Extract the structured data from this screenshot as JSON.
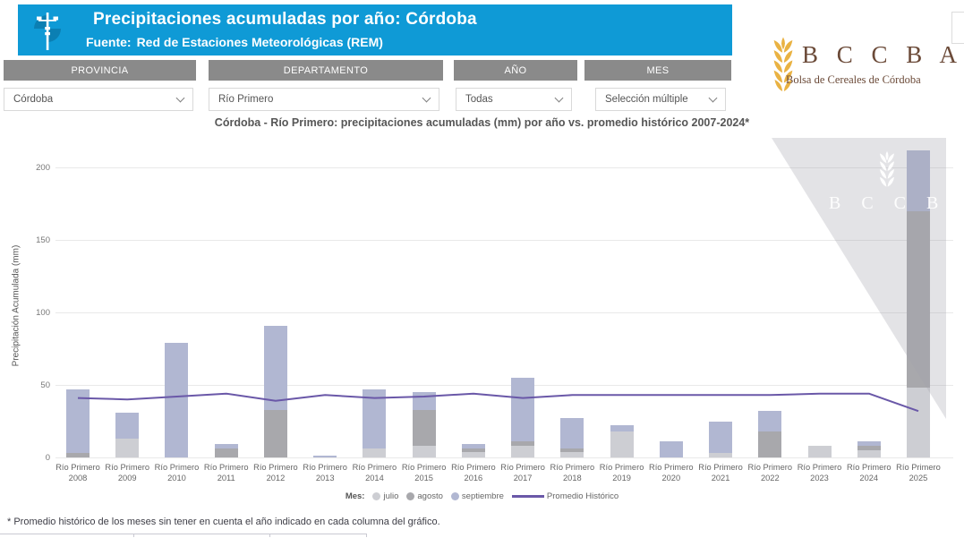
{
  "header": {
    "title": "Precipitaciones acumuladas por año: Córdoba",
    "source_label": "Fuente:",
    "source_value": "Red de Estaciones Meteorológicas (REM)"
  },
  "filters": [
    {
      "label": "PROVINCIA",
      "value": "Córdoba"
    },
    {
      "label": "DEPARTAMENTO",
      "value": "Río Primero"
    },
    {
      "label": "AÑO",
      "value": "Todas"
    },
    {
      "label": "MES",
      "value": "Selección múltiple"
    }
  ],
  "logo": {
    "acronym": "B C C B A",
    "tagline": "Bolsa de Cereales de Córdoba"
  },
  "watermark": {
    "acronym": "B C C B A"
  },
  "colors": {
    "header_bg": "#0f9ad6",
    "filter_header_bg": "#8a8a8a",
    "julio": "#cdced3",
    "agosto": "#a8a8ac",
    "septiembre": "#b1b7d2",
    "promedio_line": "#6a58a8",
    "logo_brown": "#6b4a38",
    "wheat_gold": "#e9b243"
  },
  "chart_data": {
    "type": "bar",
    "stacked": true,
    "title": "Córdoba - Río Primero: precipitaciones acumuladas (mm) por año vs. promedio histórico 2007-2024*",
    "ylabel": "Precipitación Acumulada (mm)",
    "ylim": [
      0,
      220
    ],
    "yticks": [
      0,
      50,
      100,
      150,
      200
    ],
    "grid": true,
    "legend_label": "Mes:",
    "legend_position": "bottom",
    "category_prefix": "Río Primero",
    "categories": [
      "2008",
      "2009",
      "2010",
      "2011",
      "2012",
      "2013",
      "2014",
      "2015",
      "2016",
      "2017",
      "2018",
      "2019",
      "2020",
      "2021",
      "2022",
      "2023",
      "2024",
      "2025"
    ],
    "series": [
      {
        "name": "julio",
        "color": "#cdced3",
        "values": [
          0,
          13,
          0,
          0,
          0,
          0,
          6,
          8,
          4,
          8,
          4,
          18,
          0,
          3,
          0,
          8,
          5,
          48
        ]
      },
      {
        "name": "agosto",
        "color": "#a8a8ac",
        "values": [
          3,
          0,
          0,
          6,
          33,
          0,
          0,
          25,
          2,
          3,
          2,
          0,
          0,
          0,
          18,
          0,
          3,
          122
        ]
      },
      {
        "name": "septiembre",
        "color": "#b1b7d2",
        "values": [
          44,
          18,
          79,
          3,
          58,
          1,
          41,
          12,
          3,
          44,
          21,
          4,
          11,
          22,
          14,
          0,
          3,
          42
        ]
      },
      {
        "name": "Promedio Histórico",
        "type": "line",
        "color": "#6a58a8",
        "values": [
          41,
          40,
          42,
          44,
          39,
          43,
          41,
          42,
          44,
          41,
          43,
          43,
          43,
          43,
          43,
          44,
          44,
          32
        ]
      }
    ]
  },
  "footnote": "* Promedio histórico de los meses sin tener en cuenta el año indicado en cada columna del gráfico."
}
